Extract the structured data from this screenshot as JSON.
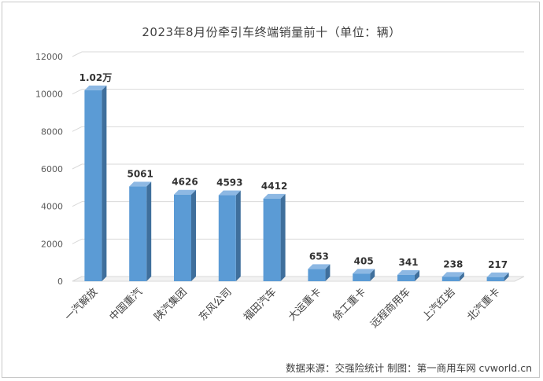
{
  "chart_data": {
    "type": "bar",
    "title": "2023年8月份牵引车终端销量前十（单位：辆）",
    "categories": [
      "一汽解放",
      "中国重汽",
      "陕汽集团",
      "东风公司",
      "福田汽车",
      "大运重卡",
      "徐工重卡",
      "远程商用车",
      "上汽红岩",
      "北汽重卡"
    ],
    "values": [
      10200,
      5061,
      4626,
      4593,
      4412,
      653,
      405,
      341,
      238,
      217
    ],
    "data_labels": [
      "1.02万",
      "5061",
      "4626",
      "4593",
      "4412",
      "653",
      "405",
      "341",
      "238",
      "217"
    ],
    "xlabel": "",
    "ylabel": "",
    "ylim": [
      0,
      12000
    ],
    "yticks": [
      0,
      2000,
      4000,
      6000,
      8000,
      10000,
      12000
    ],
    "ytick_labels": [
      "0",
      "2000",
      "4000",
      "6000",
      "8000",
      "10000",
      "12000"
    ],
    "grid": true,
    "legend": "none",
    "bar_color": "#5b9bd5",
    "bar_side_color": "#3f6f9c",
    "bar_top_color": "#8db8e3"
  },
  "source_note": "数据来源：交强险统计   制图：第一商用车网 cvworld.cn"
}
